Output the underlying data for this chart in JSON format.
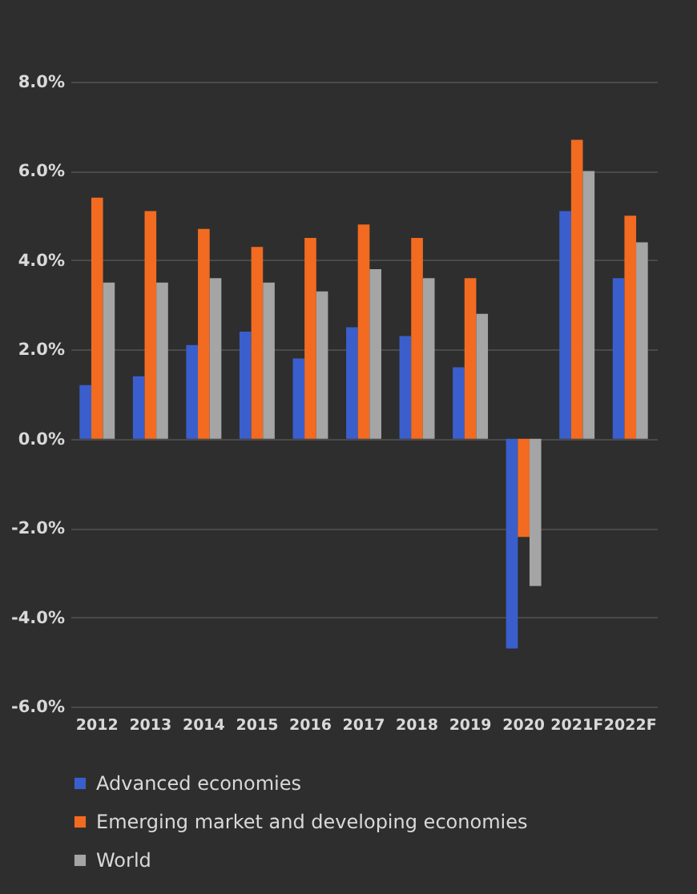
{
  "chart_data": {
    "type": "bar",
    "categories": [
      "2012",
      "2013",
      "2014",
      "2015",
      "2016",
      "2017",
      "2018",
      "2019",
      "2020",
      "2021F",
      "2022F"
    ],
    "series": [
      {
        "name": "Advanced economies",
        "color": "#3a5fcd",
        "values": [
          1.2,
          1.4,
          2.1,
          2.4,
          1.8,
          2.5,
          2.3,
          1.6,
          -4.7,
          5.1,
          3.6
        ]
      },
      {
        "name": "Emerging market and developing economies",
        "color": "#f26b21",
        "values": [
          5.4,
          5.1,
          4.7,
          4.3,
          4.5,
          4.8,
          4.5,
          3.6,
          -2.2,
          6.7,
          5.0
        ]
      },
      {
        "name": "World",
        "color": "#a5a5a5",
        "values": [
          3.5,
          3.5,
          3.6,
          3.5,
          3.3,
          3.8,
          3.6,
          2.8,
          -3.3,
          6.0,
          4.4
        ]
      }
    ],
    "ylim": [
      -6,
      8
    ],
    "yticks": [
      {
        "value": -6,
        "label": "-6.0%"
      },
      {
        "value": -4,
        "label": "-4.0%"
      },
      {
        "value": -2,
        "label": "-2.0%"
      },
      {
        "value": 0,
        "label": "0.0%"
      },
      {
        "value": 2,
        "label": "2.0%"
      },
      {
        "value": 4,
        "label": "4.0%"
      },
      {
        "value": 6,
        "label": "6.0%"
      },
      {
        "value": 8,
        "label": "8.0%"
      }
    ],
    "grid": "y",
    "legend": "bottom"
  }
}
